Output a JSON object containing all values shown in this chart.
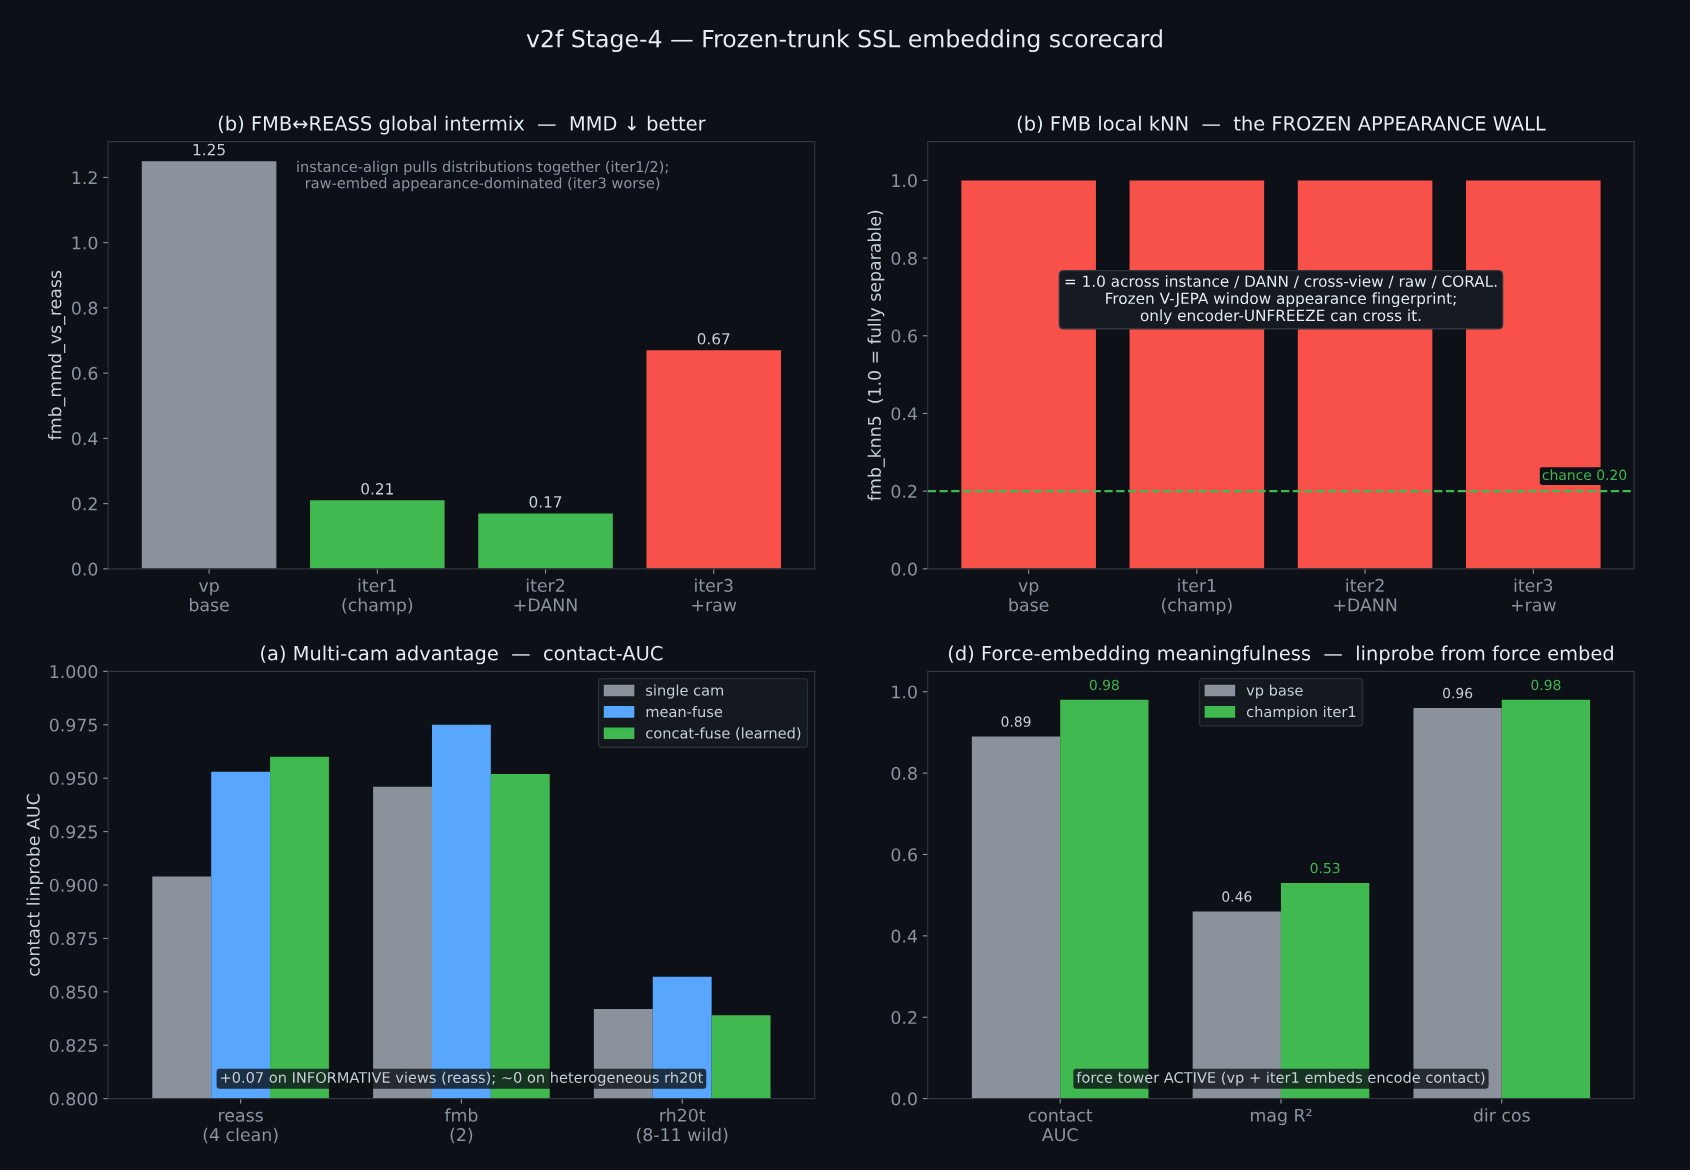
{
  "chart_data": [
    {
      "type": "bar",
      "title": "v2f Stage-4 — Frozen-trunk SSL embedding scorecard",
      "subtitle": "(b) FMB↔REASS global intermix  —  MMD ↓ better",
      "ylabel": "fmb_mmd_vs_reass",
      "categories": [
        "vp\nbase",
        "iter1\n(champ)",
        "iter2\n+DANN",
        "iter3\n+raw"
      ],
      "values": [
        1.25,
        0.21,
        0.17,
        0.67
      ],
      "colors": [
        "#8b929c",
        "#3fb950",
        "#3fb950",
        "#f85149"
      ],
      "ylim": [
        0,
        1.31
      ],
      "yticks": [
        {
          "value": 0,
          "label": "0.0"
        },
        0.2,
        0.4,
        0.6,
        0.8,
        {
          "value": 1,
          "label": "1.0"
        },
        1.2
      ],
      "data_labels": true,
      "grid": false,
      "legend": false,
      "annotations": [
        "instance-align pulls distributions together (iter1/2);\nraw-embed appearance-dominated (iter3 worse)"
      ]
    },
    {
      "type": "bar",
      "subtitle": "(b) FMB local kNN  —  the FROZEN APPEARANCE WALL",
      "ylabel": "fmb_knn5  (1.0 = fully separable)",
      "categories": [
        "vp\nbase",
        "iter1\n(champ)",
        "iter2\n+DANN",
        "iter3\n+raw"
      ],
      "values": [
        1.0,
        1.0,
        1.0,
        1.0
      ],
      "colors": [
        "#f85149",
        "#f85149",
        "#f85149",
        "#f85149"
      ],
      "ylim": [
        0,
        1.1
      ],
      "yticks": [
        {
          "value": 0,
          "label": "0.0"
        },
        0.2,
        0.4,
        0.6,
        0.8,
        {
          "value": 1,
          "label": "1.0"
        }
      ],
      "grid": false,
      "legend": false,
      "ref_lines": [
        {
          "axis": "y",
          "value": 0.2,
          "label": "chance 0.20",
          "color": "#3fb950",
          "line_style": "dashed"
        }
      ],
      "annotations": [
        "= 1.0 across instance / DANN / cross-view / raw / CORAL.\nFrozen V-JEPA window appearance fingerprint;\nonly encoder-UNFREEZE can cross it."
      ]
    },
    {
      "type": "bar",
      "subtitle": "(a) Multi-cam advantage  —  contact-AUC",
      "ylabel": "contact linprobe AUC",
      "categories": [
        "reass\n(4 clean)",
        "fmb\n(2)",
        "rh20t\n(8-11 wild)"
      ],
      "ylim": [
        0.8,
        1.0
      ],
      "yticks": [
        {
          "value": 0.8,
          "label": "0.800"
        },
        {
          "value": 0.825,
          "label": "0.825"
        },
        {
          "value": 0.85,
          "label": "0.850"
        },
        {
          "value": 0.875,
          "label": "0.875"
        },
        {
          "value": 0.9,
          "label": "0.900"
        },
        {
          "value": 0.925,
          "label": "0.925"
        },
        {
          "value": 0.95,
          "label": "0.950"
        },
        {
          "value": 0.975,
          "label": "0.975"
        },
        {
          "value": 1.0,
          "label": "1.000"
        }
      ],
      "grid": false,
      "legend": "top right",
      "series": [
        {
          "name": "single cam",
          "color": "#8b929c",
          "values": [
            0.904,
            0.946,
            0.842
          ]
        },
        {
          "name": "mean-fuse",
          "color": "#58a6ff",
          "values": [
            0.953,
            0.975,
            0.857
          ]
        },
        {
          "name": "concat-fuse (learned)",
          "color": "#3fb950",
          "values": [
            0.96,
            0.952,
            0.839
          ]
        }
      ],
      "annotations": [
        "+0.07 on INFORMATIVE views (reass); ~0 on heterogeneous rh20t"
      ]
    },
    {
      "type": "bar",
      "subtitle": "(d) Force-embedding meaningfulness  —  linprobe from force embed",
      "categories": [
        "contact\nAUC",
        "mag R²",
        "dir cos"
      ],
      "ylim": [
        0,
        1.05
      ],
      "yticks": [
        {
          "value": 0,
          "label": "0.0"
        },
        0.2,
        0.4,
        0.6,
        0.8,
        {
          "value": 1,
          "label": "1.0"
        }
      ],
      "grid": false,
      "legend": "top",
      "data_labels": true,
      "series": [
        {
          "name": "vp base",
          "color": "#8b929c",
          "values": [
            0.89,
            0.46,
            0.96
          ]
        },
        {
          "name": "champion iter1",
          "color": "#3fb950",
          "values": [
            0.98,
            0.53,
            0.98
          ]
        }
      ],
      "annotations": [
        "force tower ACTIVE (vp + iter1 embeds encode contact)"
      ]
    }
  ]
}
